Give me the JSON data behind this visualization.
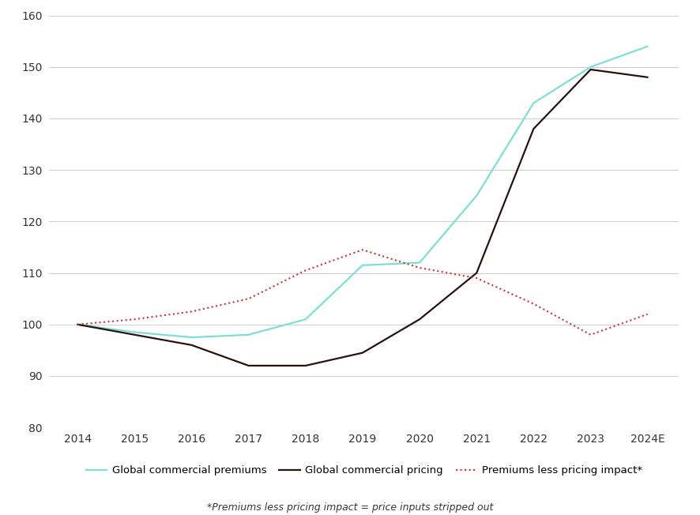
{
  "years": [
    2014,
    2015,
    2016,
    2017,
    2018,
    2019,
    2020,
    2021,
    2022,
    2023,
    2024
  ],
  "year_labels": [
    "2014",
    "2015",
    "2016",
    "2017",
    "2018",
    "2019",
    "2020",
    "2021",
    "2022",
    "2023",
    "2024E"
  ],
  "global_commercial_premiums": [
    100,
    98.5,
    97.5,
    98,
    101,
    111.5,
    112,
    125,
    143,
    150,
    154
  ],
  "global_commercial_pricing": [
    100,
    98,
    96,
    92,
    92,
    94.5,
    101,
    110,
    138,
    149.5,
    148
  ],
  "premiums_less_pricing_impact": [
    100,
    101,
    102.5,
    105,
    110.5,
    114.5,
    111,
    109,
    104,
    98,
    102
  ],
  "premium_color": "#7DDFD3",
  "pricing_color": "#2B1010",
  "less_pricing_color": "#CC3333",
  "ylim": [
    80,
    160
  ],
  "yticks": [
    80,
    90,
    100,
    110,
    120,
    130,
    140,
    150,
    160
  ],
  "legend_premium": "Global commercial premiums",
  "legend_pricing": "Global commercial pricing",
  "legend_less": "Premiums less pricing impact*",
  "footnote": "*Premiums less pricing impact = price inputs stripped out",
  "background_color": "#ffffff",
  "grid_color": "#cccccc"
}
